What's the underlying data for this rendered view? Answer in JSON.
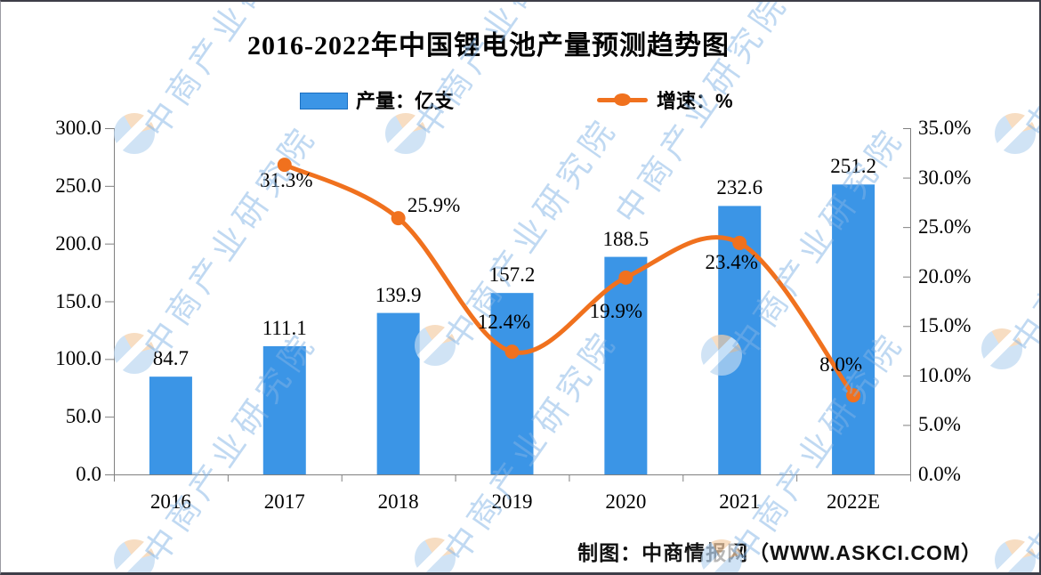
{
  "title": "2016-2022年中国锂电池产量预测趋势图",
  "legend": {
    "bar_label": "产量：亿支",
    "line_label": "增速：%"
  },
  "footer": "制图：中商情报网（WWW.ASKCI.COM）",
  "watermark_text": "中商产业研究院",
  "colors": {
    "bar": "#3B95E6",
    "bar_border": "#1B6FC0",
    "line": "#F0711E",
    "axis": "#808080",
    "watermark": "#82B4E6"
  },
  "chart_data": {
    "type": "bar+line",
    "title": "2016-2022年中国锂电池产量预测趋势图",
    "categories": [
      "2016",
      "2017",
      "2018",
      "2019",
      "2020",
      "2021",
      "2022E"
    ],
    "series": [
      {
        "name": "产量：亿支",
        "type": "bar",
        "axis": "left",
        "values": [
          84.7,
          111.1,
          139.9,
          157.2,
          188.5,
          232.6,
          251.2
        ],
        "labels": [
          "84.7",
          "111.1",
          "139.9",
          "157.2",
          "188.5",
          "232.6",
          "251.2"
        ]
      },
      {
        "name": "增速：%",
        "type": "line",
        "axis": "right",
        "values": [
          null,
          31.3,
          25.9,
          12.4,
          19.9,
          23.4,
          8.0
        ],
        "labels": [
          null,
          "31.3%",
          "25.9%",
          "12.4%",
          "19.9%",
          "23.4%",
          "8.0%"
        ]
      }
    ],
    "left_axis": {
      "min": 0,
      "max": 300,
      "step": 50,
      "tick_labels": [
        "300.0",
        "250.0",
        "200.0",
        "150.0",
        "100.0",
        "50.0",
        "0.0"
      ]
    },
    "right_axis": {
      "min": 0,
      "max": 35,
      "step": 5,
      "tick_labels": [
        "35.0%",
        "30.0%",
        "25.0%",
        "20.0%",
        "15.0%",
        "10.0%",
        "5.0%",
        "0.0%"
      ]
    },
    "grid": false,
    "legend_position": "top"
  }
}
